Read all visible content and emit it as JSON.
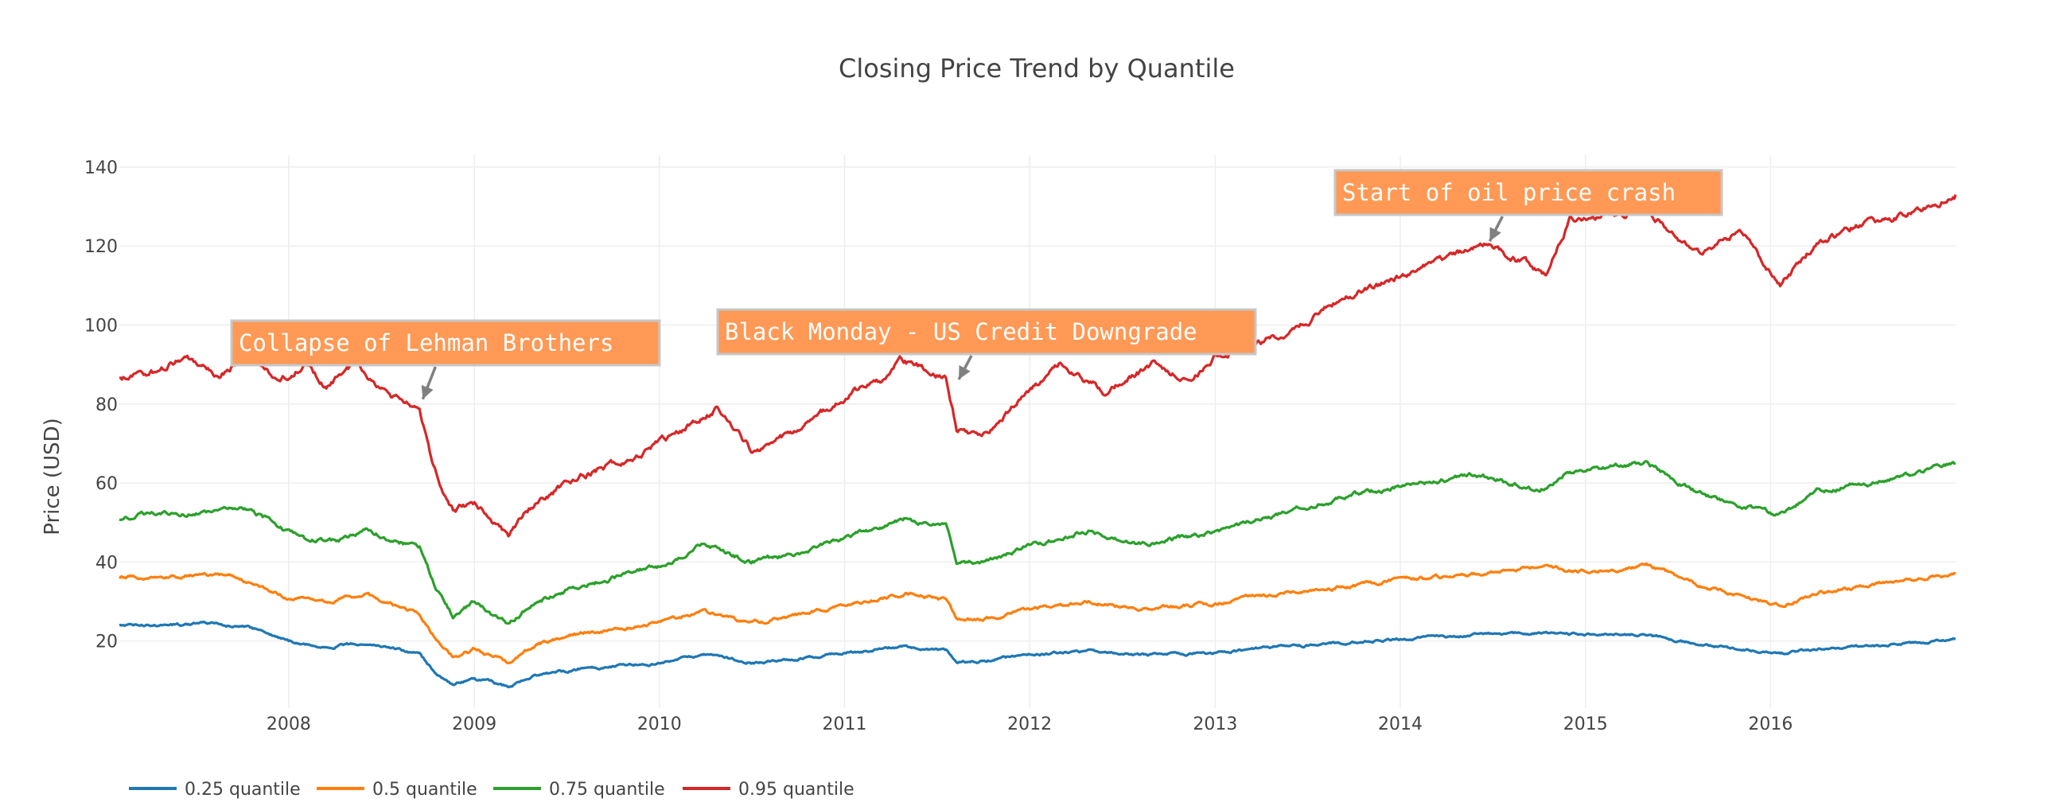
{
  "chart_data": {
    "type": "line",
    "title": "Closing Price Trend by Quantile",
    "xlabel": "",
    "ylabel": "Price (USD)",
    "xlim": [
      "2007-02-01",
      "2016-12-31"
    ],
    "ylim": [
      3,
      143
    ],
    "x_ticks": [
      "2008",
      "2009",
      "2010",
      "2011",
      "2012",
      "2013",
      "2014",
      "2015",
      "2016"
    ],
    "y_ticks": [
      20,
      40,
      60,
      80,
      100,
      120,
      140
    ],
    "grid": true,
    "legend_position": "bottom-left",
    "colors": {
      "0.25 quantile": "#1f77b4",
      "0.5 quantile": "#ff7f0e",
      "0.75 quantile": "#2ca02c",
      "0.95 quantile": "#d62728",
      "annotation_bg": "#ff9955",
      "annotation_border": "#c7c7c7",
      "arrow": "#808080",
      "gridline": "#eeeeee",
      "text": "#444444"
    },
    "series": [
      {
        "name": "0.25 quantile",
        "points": [
          [
            "2007-02-01",
            24
          ],
          [
            "2007-05-01",
            24
          ],
          [
            "2007-08-01",
            24.5
          ],
          [
            "2007-11-01",
            23
          ],
          [
            "2008-01-01",
            20
          ],
          [
            "2008-03-01",
            18.5
          ],
          [
            "2008-06-01",
            19.5
          ],
          [
            "2008-08-01",
            18
          ],
          [
            "2008-09-15",
            16.5
          ],
          [
            "2008-10-15",
            12
          ],
          [
            "2008-11-20",
            9
          ],
          [
            "2009-01-01",
            10.5
          ],
          [
            "2009-03-09",
            8.5
          ],
          [
            "2009-05-01",
            11
          ],
          [
            "2009-08-01",
            13
          ],
          [
            "2009-11-01",
            14
          ],
          [
            "2010-01-01",
            14.5
          ],
          [
            "2010-04-01",
            16.5
          ],
          [
            "2010-07-01",
            14.5
          ],
          [
            "2010-10-01",
            15.5
          ],
          [
            "2011-01-01",
            17
          ],
          [
            "2011-05-01",
            18.5
          ],
          [
            "2011-07-20",
            17.5
          ],
          [
            "2011-08-10",
            15
          ],
          [
            "2011-10-01",
            15
          ],
          [
            "2012-01-01",
            16.5
          ],
          [
            "2012-05-01",
            17.5
          ],
          [
            "2012-08-01",
            16.5
          ],
          [
            "2013-01-01",
            17
          ],
          [
            "2013-05-01",
            18.5
          ],
          [
            "2013-10-01",
            19.5
          ],
          [
            "2014-01-01",
            20.5
          ],
          [
            "2014-06-01",
            21.5
          ],
          [
            "2014-10-01",
            22
          ],
          [
            "2015-01-01",
            21.5
          ],
          [
            "2015-05-01",
            21.5
          ],
          [
            "2015-08-20",
            19
          ],
          [
            "2016-01-20",
            16.5
          ],
          [
            "2016-04-01",
            18
          ],
          [
            "2016-09-01",
            19
          ],
          [
            "2016-12-31",
            20.5
          ]
        ]
      },
      {
        "name": "0.5 quantile",
        "points": [
          [
            "2007-02-01",
            36
          ],
          [
            "2007-06-01",
            36.5
          ],
          [
            "2007-09-01",
            37
          ],
          [
            "2007-11-01",
            34
          ],
          [
            "2008-01-01",
            31
          ],
          [
            "2008-03-15",
            30
          ],
          [
            "2008-06-01",
            32
          ],
          [
            "2008-08-01",
            28.5
          ],
          [
            "2008-09-15",
            27
          ],
          [
            "2008-10-15",
            21
          ],
          [
            "2008-11-20",
            16
          ],
          [
            "2009-01-01",
            18
          ],
          [
            "2009-03-09",
            14.5
          ],
          [
            "2009-05-01",
            19
          ],
          [
            "2009-08-01",
            22
          ],
          [
            "2009-11-01",
            23.5
          ],
          [
            "2010-01-01",
            25
          ],
          [
            "2010-04-01",
            27.5
          ],
          [
            "2010-07-01",
            24.5
          ],
          [
            "2010-10-01",
            26.5
          ],
          [
            "2011-01-01",
            29
          ],
          [
            "2011-05-01",
            32
          ],
          [
            "2011-07-20",
            30.5
          ],
          [
            "2011-08-10",
            25.5
          ],
          [
            "2011-10-01",
            25
          ],
          [
            "2012-01-01",
            28
          ],
          [
            "2012-05-01",
            30
          ],
          [
            "2012-08-01",
            28
          ],
          [
            "2013-01-01",
            29.5
          ],
          [
            "2013-05-01",
            32
          ],
          [
            "2013-10-01",
            34
          ],
          [
            "2014-01-01",
            35.5
          ],
          [
            "2014-06-01",
            37
          ],
          [
            "2014-10-01",
            39
          ],
          [
            "2015-01-01",
            37.5
          ],
          [
            "2015-05-01",
            39
          ],
          [
            "2015-08-20",
            34
          ],
          [
            "2016-01-20",
            29
          ],
          [
            "2016-04-01",
            32
          ],
          [
            "2016-09-01",
            35
          ],
          [
            "2016-12-31",
            37
          ]
        ]
      },
      {
        "name": "0.75 quantile",
        "points": [
          [
            "2007-02-01",
            51
          ],
          [
            "2007-05-01",
            53
          ],
          [
            "2007-08-01",
            52
          ],
          [
            "2007-10-01",
            54
          ],
          [
            "2007-12-01",
            50
          ],
          [
            "2008-02-01",
            46
          ],
          [
            "2008-04-01",
            45
          ],
          [
            "2008-06-01",
            48
          ],
          [
            "2008-08-01",
            45
          ],
          [
            "2008-09-15",
            44
          ],
          [
            "2008-10-15",
            34
          ],
          [
            "2008-11-20",
            26
          ],
          [
            "2009-01-01",
            30
          ],
          [
            "2009-03-09",
            24
          ],
          [
            "2009-05-01",
            30
          ],
          [
            "2009-08-01",
            34
          ],
          [
            "2009-11-01",
            37
          ],
          [
            "2010-01-01",
            39
          ],
          [
            "2010-04-01",
            44.5
          ],
          [
            "2010-07-01",
            40
          ],
          [
            "2010-10-01",
            42
          ],
          [
            "2011-01-01",
            46
          ],
          [
            "2011-05-01",
            51
          ],
          [
            "2011-07-20",
            49
          ],
          [
            "2011-08-10",
            40
          ],
          [
            "2011-10-01",
            40
          ],
          [
            "2012-01-01",
            44
          ],
          [
            "2012-05-01",
            48
          ],
          [
            "2012-08-01",
            44.5
          ],
          [
            "2013-01-01",
            47.5
          ],
          [
            "2013-05-01",
            52
          ],
          [
            "2013-10-01",
            57
          ],
          [
            "2014-01-01",
            59
          ],
          [
            "2014-06-01",
            62
          ],
          [
            "2014-10-01",
            58
          ],
          [
            "2014-12-01",
            63
          ],
          [
            "2015-05-01",
            65
          ],
          [
            "2015-08-20",
            57
          ],
          [
            "2016-01-20",
            52
          ],
          [
            "2016-04-01",
            58
          ],
          [
            "2016-09-01",
            61
          ],
          [
            "2016-12-31",
            65
          ]
        ]
      },
      {
        "name": "0.95 quantile",
        "points": [
          [
            "2007-02-01",
            87
          ],
          [
            "2007-04-15",
            88
          ],
          [
            "2007-06-15",
            92.5
          ],
          [
            "2007-08-15",
            87
          ],
          [
            "2007-10-15",
            93
          ],
          [
            "2007-12-15",
            86
          ],
          [
            "2008-02-01",
            90
          ],
          [
            "2008-03-15",
            84
          ],
          [
            "2008-05-15",
            91
          ],
          [
            "2008-07-15",
            82
          ],
          [
            "2008-08-20",
            80
          ],
          [
            "2008-09-15",
            78
          ],
          [
            "2008-10-10",
            65
          ],
          [
            "2008-11-20",
            53
          ],
          [
            "2009-01-01",
            55
          ],
          [
            "2009-03-09",
            47
          ],
          [
            "2009-05-01",
            55
          ],
          [
            "2009-08-01",
            62
          ],
          [
            "2009-11-01",
            66
          ],
          [
            "2010-01-01",
            70
          ],
          [
            "2010-04-25",
            79
          ],
          [
            "2010-07-01",
            68
          ],
          [
            "2010-10-01",
            73
          ],
          [
            "2011-01-01",
            82
          ],
          [
            "2011-03-15",
            86
          ],
          [
            "2011-04-20",
            91
          ],
          [
            "2011-07-20",
            87
          ],
          [
            "2011-08-10",
            74
          ],
          [
            "2011-10-01",
            72
          ],
          [
            "2011-12-01",
            80
          ],
          [
            "2012-03-01",
            90
          ],
          [
            "2012-06-01",
            83
          ],
          [
            "2012-09-01",
            90
          ],
          [
            "2012-11-15",
            86
          ],
          [
            "2013-01-01",
            92
          ],
          [
            "2013-05-01",
            97
          ],
          [
            "2013-10-01",
            108
          ],
          [
            "2014-01-01",
            112
          ],
          [
            "2014-06-15",
            121
          ],
          [
            "2014-10-15",
            113
          ],
          [
            "2014-12-01",
            127
          ],
          [
            "2015-05-01",
            129
          ],
          [
            "2015-08-20",
            117
          ],
          [
            "2015-11-01",
            124
          ],
          [
            "2016-01-20",
            110
          ],
          [
            "2016-04-01",
            121
          ],
          [
            "2016-06-15",
            125
          ],
          [
            "2016-09-01",
            127
          ],
          [
            "2016-12-31",
            133
          ]
        ]
      }
    ],
    "annotations": [
      {
        "text": "Collapse of Lehman Brothers",
        "x": "2008-09-15",
        "y": 80
      },
      {
        "text": "Black Monday - US Credit Downgrade",
        "x": "2011-08-08",
        "y": 85
      },
      {
        "text": "Start of oil price crash",
        "x": "2014-06-20",
        "y": 120
      }
    ]
  }
}
